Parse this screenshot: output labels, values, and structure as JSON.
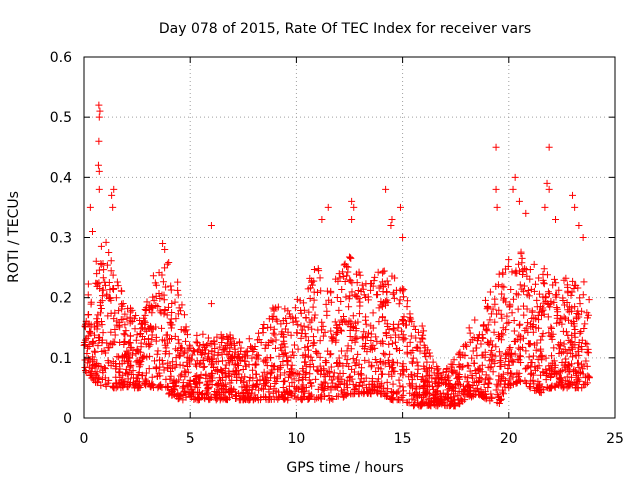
{
  "chart_data": {
    "type": "scatter",
    "title": "Day 078 of 2015, Rate Of TEC Index for receiver vars",
    "xlabel": "GPS time / hours",
    "ylabel": "ROTI / TECUs",
    "xlim": [
      0,
      25
    ],
    "ylim": [
      0,
      0.6
    ],
    "xticks": [
      "0",
      "5",
      "10",
      "15",
      "20",
      "25"
    ],
    "yticks": [
      "0",
      "0.1",
      "0.2",
      "0.3",
      "0.4",
      "0.5",
      "0.6"
    ],
    "grid": true,
    "marker": "+",
    "color": "#ff0000",
    "series": [
      {
        "name": "ROTI",
        "envelope": {
          "x": [
            0,
            0.5,
            1,
            1.5,
            2,
            2.5,
            3,
            3.5,
            4,
            4.5,
            5,
            5.5,
            6,
            6.5,
            7,
            7.5,
            8,
            8.5,
            9,
            9.5,
            10,
            10.5,
            11,
            11.5,
            12,
            12.5,
            13,
            13.5,
            14,
            14.5,
            15,
            15.5,
            16,
            16.5,
            17,
            17.5,
            18,
            18.5,
            19,
            19.5,
            20,
            20.5,
            21,
            21.5,
            22,
            22.5,
            23,
            23.5,
            23.8
          ],
          "low": [
            0.08,
            0.06,
            0.05,
            0.05,
            0.05,
            0.05,
            0.05,
            0.05,
            0.04,
            0.03,
            0.03,
            0.03,
            0.03,
            0.03,
            0.03,
            0.03,
            0.03,
            0.03,
            0.03,
            0.03,
            0.03,
            0.03,
            0.03,
            0.03,
            0.03,
            0.04,
            0.04,
            0.04,
            0.04,
            0.03,
            0.03,
            0.02,
            0.02,
            0.02,
            0.02,
            0.02,
            0.03,
            0.04,
            0.03,
            0.02,
            0.05,
            0.06,
            0.05,
            0.04,
            0.05,
            0.05,
            0.05,
            0.05,
            0.06
          ],
          "high": [
            0.22,
            0.26,
            0.3,
            0.24,
            0.2,
            0.17,
            0.2,
            0.27,
            0.26,
            0.22,
            0.12,
            0.15,
            0.13,
            0.14,
            0.14,
            0.13,
            0.14,
            0.16,
            0.2,
            0.18,
            0.2,
            0.22,
            0.27,
            0.22,
            0.24,
            0.27,
            0.24,
            0.23,
            0.26,
            0.24,
            0.22,
            0.17,
            0.15,
            0.09,
            0.08,
            0.1,
            0.14,
            0.18,
            0.2,
            0.24,
            0.27,
            0.28,
            0.26,
            0.25,
            0.25,
            0.24,
            0.23,
            0.24,
            0.21
          ]
        },
        "outliers": [
          {
            "x": 0.3,
            "y": 0.35
          },
          {
            "x": 0.4,
            "y": 0.31
          },
          {
            "x": 0.7,
            "y": 0.52
          },
          {
            "x": 0.75,
            "y": 0.51
          },
          {
            "x": 0.72,
            "y": 0.5
          },
          {
            "x": 0.7,
            "y": 0.46
          },
          {
            "x": 0.68,
            "y": 0.42
          },
          {
            "x": 0.72,
            "y": 0.41
          },
          {
            "x": 0.72,
            "y": 0.38
          },
          {
            "x": 1.4,
            "y": 0.38
          },
          {
            "x": 1.3,
            "y": 0.37
          },
          {
            "x": 1.35,
            "y": 0.35
          },
          {
            "x": 3.7,
            "y": 0.29
          },
          {
            "x": 3.8,
            "y": 0.28
          },
          {
            "x": 6.0,
            "y": 0.32
          },
          {
            "x": 6.0,
            "y": 0.19
          },
          {
            "x": 11.5,
            "y": 0.35
          },
          {
            "x": 11.2,
            "y": 0.33
          },
          {
            "x": 12.6,
            "y": 0.36
          },
          {
            "x": 12.7,
            "y": 0.35
          },
          {
            "x": 12.6,
            "y": 0.33
          },
          {
            "x": 14.2,
            "y": 0.38
          },
          {
            "x": 14.5,
            "y": 0.33
          },
          {
            "x": 14.45,
            "y": 0.32
          },
          {
            "x": 14.9,
            "y": 0.35
          },
          {
            "x": 15.0,
            "y": 0.3
          },
          {
            "x": 19.4,
            "y": 0.45
          },
          {
            "x": 19.4,
            "y": 0.38
          },
          {
            "x": 19.45,
            "y": 0.35
          },
          {
            "x": 20.3,
            "y": 0.4
          },
          {
            "x": 20.2,
            "y": 0.38
          },
          {
            "x": 20.5,
            "y": 0.36
          },
          {
            "x": 20.8,
            "y": 0.34
          },
          {
            "x": 21.9,
            "y": 0.45
          },
          {
            "x": 21.8,
            "y": 0.39
          },
          {
            "x": 21.9,
            "y": 0.38
          },
          {
            "x": 21.7,
            "y": 0.35
          },
          {
            "x": 22.2,
            "y": 0.33
          },
          {
            "x": 23.0,
            "y": 0.37
          },
          {
            "x": 23.1,
            "y": 0.35
          },
          {
            "x": 23.3,
            "y": 0.32
          },
          {
            "x": 23.5,
            "y": 0.3
          }
        ]
      }
    ]
  }
}
